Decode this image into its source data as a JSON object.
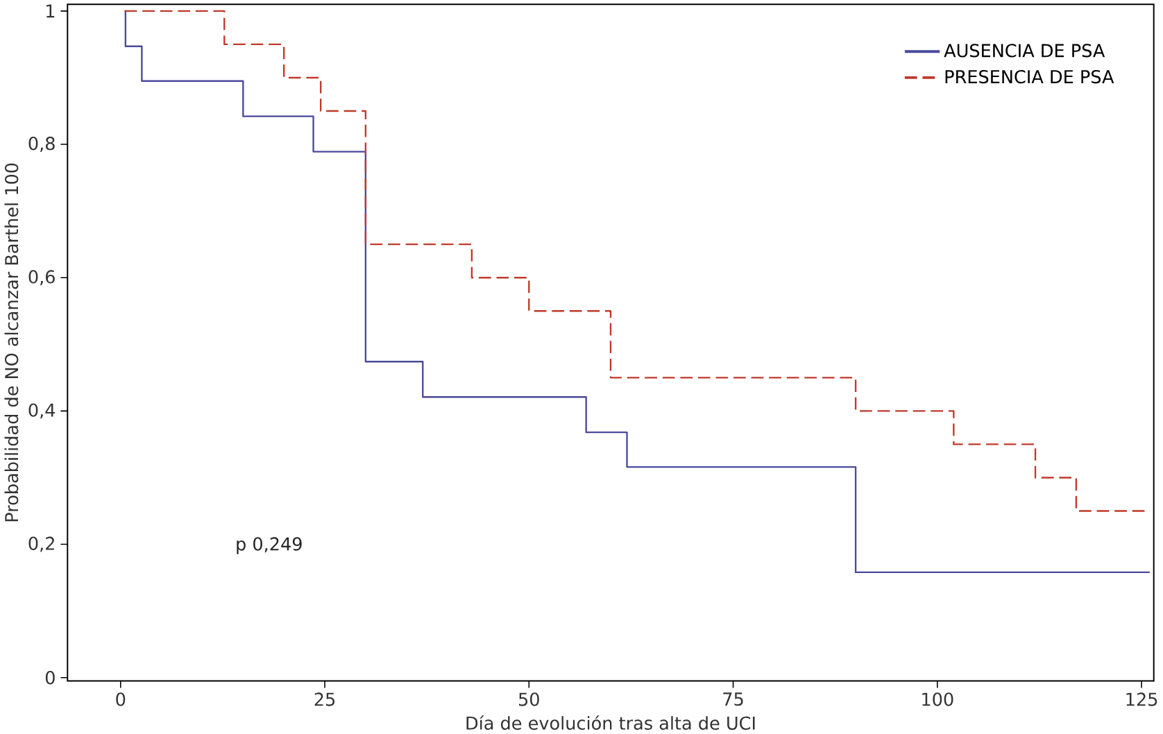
{
  "chart_data": {
    "type": "step",
    "xlabel": "Día de evolución tras alta de UCI",
    "ylabel": "Probabilidad de NO alcanzar Barthel 100",
    "xlim": [
      -6.5,
      126.5
    ],
    "ylim": [
      -0.005,
      1.01
    ],
    "xticks": [
      0,
      25,
      50,
      75,
      100,
      125
    ],
    "yticks": [
      0,
      {
        "value": 0.2,
        "label": "0,2"
      },
      {
        "value": 0.4,
        "label": "0,4"
      },
      {
        "value": 0.6,
        "label": "0,6"
      },
      {
        "value": 0.8,
        "label": "0,8"
      },
      1
    ],
    "grid": false,
    "legend": "top right",
    "annotations": [
      "p 0,249"
    ],
    "series": [
      {
        "name": "AUSENCIA DE PSA",
        "color": "#4a4a9c",
        "line_style": "solid",
        "x": [
          0.5,
          0.6,
          2.6,
          15,
          23.6,
          30,
          37,
          57,
          62,
          90,
          126
        ],
        "values": [
          1,
          0.947,
          0.895,
          0.842,
          0.789,
          0.474,
          0.421,
          0.368,
          0.316,
          0.158,
          0.158
        ]
      },
      {
        "name": "PRESENCIA DE PSA",
        "color": "#c0392b",
        "line_style": "dashed",
        "x": [
          0.5,
          12.7,
          20,
          24.5,
          30,
          43,
          50,
          60,
          90,
          102,
          112,
          117,
          126
        ],
        "values": [
          1,
          0.95,
          0.9,
          0.85,
          0.65,
          0.6,
          0.55,
          0.45,
          0.4,
          0.35,
          0.3,
          0.25,
          0.25
        ]
      }
    ]
  }
}
